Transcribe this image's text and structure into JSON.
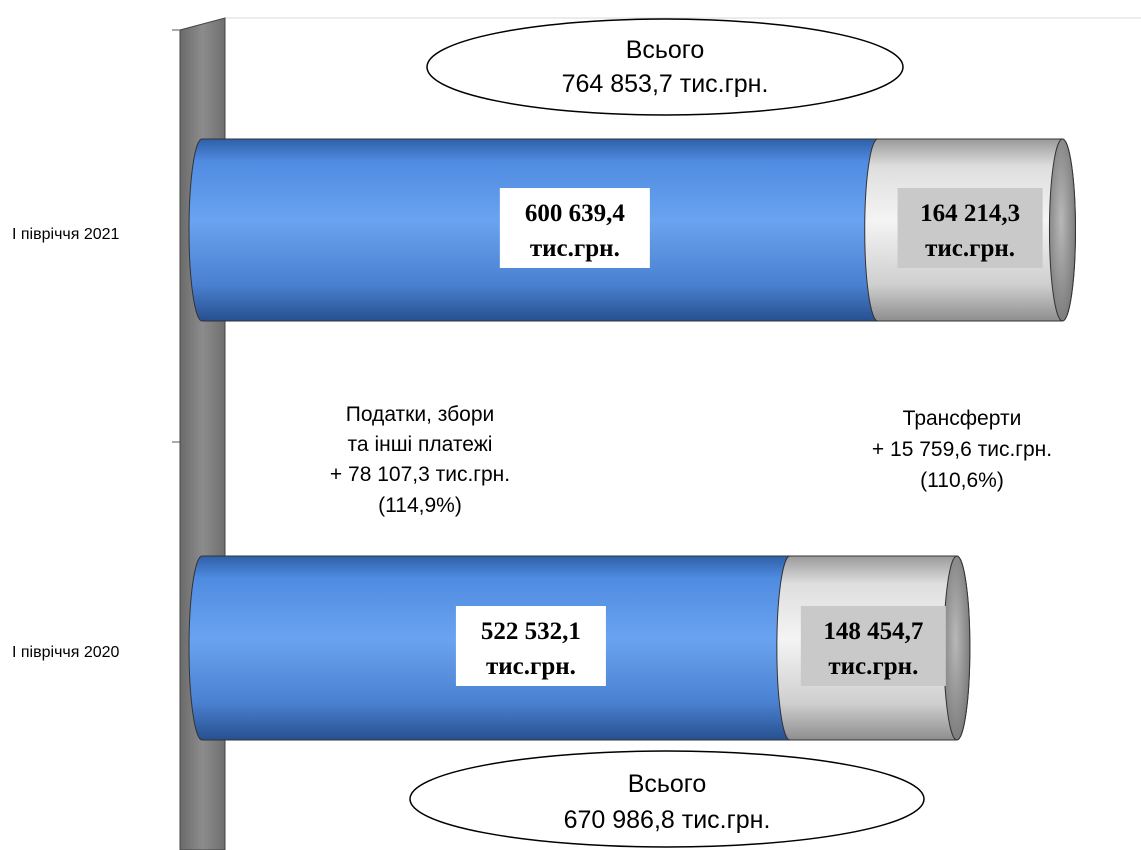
{
  "chart_data": {
    "type": "bar",
    "orientation": "horizontal",
    "stacked": true,
    "unit": "тис.грн.",
    "categories": [
      "I півріччя 2021",
      "I півріччя 2020"
    ],
    "series": [
      {
        "values": [
          600639.4,
          522532.1
        ],
        "labels": [
          "600 639,4",
          "522 532,1"
        ],
        "color": "#4a86d8"
      },
      {
        "values": [
          164214.3,
          148454.7
        ],
        "labels": [
          "164 214,3",
          "148 454,7"
        ],
        "color": "#d9d9d9"
      }
    ],
    "unit_label": "тис.грн.",
    "totals": [
      {
        "line1": "Всього",
        "line2": "764 853,7 тис.грн.",
        "value": 764853.7
      },
      {
        "line1": "Всього",
        "line2": "670 986,8 тис.грн.",
        "value": 670986.8
      }
    ],
    "annotations": [
      {
        "lines": [
          "Податки, збори",
          "та інші платежі",
          "+ 78 107,3 тис.грн.",
          "(114,9%)"
        ]
      },
      {
        "lines": [
          "Трансферти",
          "+ 15 759,6 тис.грн.",
          "(110,6%)"
        ]
      }
    ],
    "xlim": [
      0,
      800000
    ],
    "grid": false,
    "legend": "none"
  }
}
